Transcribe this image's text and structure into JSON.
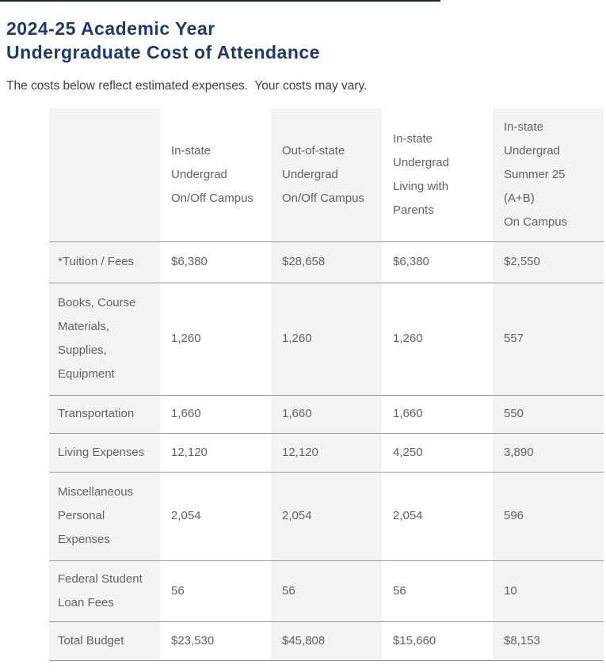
{
  "page": {
    "title_lines": [
      "2024-25 Academic Year",
      "Undergraduate Cost of Attendance"
    ],
    "subtitle": "The costs below reflect estimated expenses.  Your costs may vary."
  },
  "theme": {
    "title_color": "#1d3a6d",
    "table_text_color": "#5f6265",
    "stripe_color": "#f4f4f2",
    "border_color": "#9b9c9a"
  },
  "table": {
    "columns": [
      {
        "lines": []
      },
      {
        "lines": [
          "In-state",
          "Undergrad",
          "On/Off Campus"
        ]
      },
      {
        "lines": [
          "Out-of-state",
          "Undergrad",
          "On/Off Campus"
        ]
      },
      {
        "lines": [
          "In-state",
          "Undergrad",
          "Living with",
          "Parents"
        ]
      },
      {
        "lines": [
          "In-state",
          "Undergrad",
          "Summer 25",
          "(A+B)",
          "On Campus"
        ]
      }
    ],
    "rows": [
      {
        "label_lines": [
          "*Tuition / Fees"
        ],
        "values": [
          "$6,380",
          "$28,658",
          "$6,380",
          "$2,550"
        ]
      },
      {
        "label_lines": [
          "Books, Course",
          "Materials,",
          "Supplies,",
          "Equipment"
        ],
        "values": [
          "1,260",
          "1,260",
          "1,260",
          "557"
        ]
      },
      {
        "label_lines": [
          "Transportation"
        ],
        "values": [
          "1,660",
          "1,660",
          "1,660",
          "550"
        ]
      },
      {
        "label_lines": [
          "Living Expenses"
        ],
        "values": [
          "12,120",
          "12,120",
          "4,250",
          "3,890"
        ]
      },
      {
        "label_lines": [
          "Miscellaneous",
          "Personal",
          "Expenses"
        ],
        "values": [
          "2,054",
          "2,054",
          "2,054",
          "596"
        ]
      },
      {
        "label_lines": [
          "Federal Student",
          "Loan Fees"
        ],
        "values": [
          "56",
          "56",
          "56",
          "10"
        ]
      },
      {
        "label_lines": [
          "Total Budget"
        ],
        "values": [
          "$23,530",
          "$45,808",
          "$15,660",
          "$8,153"
        ]
      }
    ]
  }
}
